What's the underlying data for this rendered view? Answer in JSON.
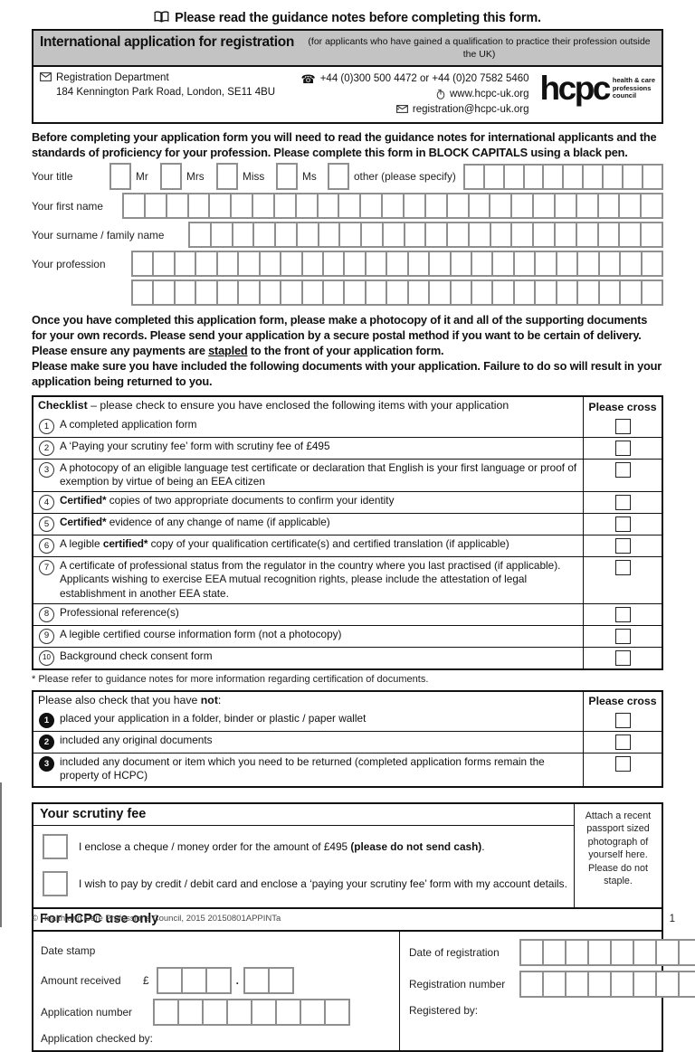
{
  "page": {
    "notice_top": "Please read the guidance notes before completing this form.",
    "footer_copyright": "© Health and Care Professions Council, 2015  20150801APPINTa",
    "page_number": "1"
  },
  "header": {
    "title": "International application for registration",
    "subtitle": "(for applicants who have gained a qualification to practice their profession outside the UK)",
    "dept": "Registration Department",
    "address": "184 Kennington Park Road, London, SE11 4BU",
    "phone": "+44 (0)300 500 4472 or +44 (0)20 7582 5460",
    "website": "www.hcpc-uk.org",
    "email": "registration@hcpc-uk.org",
    "logo": "hcpc",
    "logo_tagline": "health & care\nprofessions\ncouncil",
    "phone_glyph": "☎"
  },
  "intro": "Before completing your application form you will need to read the guidance notes for international applicants and the standards of proficiency for your profession. Please complete this form in BLOCK CAPITALS using a black pen.",
  "personal": {
    "title_label": "Your title",
    "titles": [
      "Mr",
      "Mrs",
      "Miss",
      "Ms"
    ],
    "other_label": "other (please specify)",
    "first_name": "Your first name",
    "surname": "Your surname / family name",
    "profession": "Your profession"
  },
  "notice_mid": {
    "p1": "Once you have completed this application form, please make a photocopy of it and all of the supporting documents for your own records.  Please send your application by a secure postal method if you want to be certain of delivery.",
    "p2_pre": "Please ensure any payments are ",
    "p2_underline": "stapled",
    "p2_post": " to the front of your application form.",
    "p3": "Please make sure you have included the following documents with your application. Failure to do so will result in your application being returned to you."
  },
  "checklist": {
    "title": "Checklist",
    "title_rest": " – please check to ensure you have enclosed the following items with your application",
    "cross": "Please cross",
    "items": [
      {
        "n": "1",
        "seg": [
          {
            "t": "A  completed application form"
          }
        ]
      },
      {
        "n": "2",
        "seg": [
          {
            "t": "A ‘Paying your scrutiny fee’ form with scrutiny fee of £495"
          }
        ]
      },
      {
        "n": "3",
        "seg": [
          {
            "t": "A photocopy of an eligible language test certificate or declaration that English is your first language or proof of exemption by virtue of being an EEA citizen"
          }
        ]
      },
      {
        "n": "4",
        "seg": [
          {
            "t": "Certified*",
            "b": true
          },
          {
            "t": " copies of two appropriate documents to confirm your identity"
          }
        ]
      },
      {
        "n": "5",
        "seg": [
          {
            "t": "Certified*",
            "b": true
          },
          {
            "t": " evidence of any change of name (if applicable)"
          }
        ]
      },
      {
        "n": "6",
        "seg": [
          {
            "t": "A legible "
          },
          {
            "t": "certified*",
            "b": true
          },
          {
            "t": " copy of your qualification certificate(s) and certified translation (if applicable)"
          }
        ]
      },
      {
        "n": "7",
        "seg": [
          {
            "t": "A certificate of professional status from the regulator in the country where you last practised (if applicable). Applicants wishing to exercise EEA mutual recognition rights, please include the attestation of legal establishment in another EEA state."
          }
        ]
      },
      {
        "n": "8",
        "seg": [
          {
            "t": "Professional reference(s)"
          }
        ]
      },
      {
        "n": "9",
        "seg": [
          {
            "t": "A legible certified course information form (not a photocopy)"
          }
        ]
      },
      {
        "n": "10",
        "seg": [
          {
            "t": "Background check consent form"
          }
        ]
      }
    ],
    "footnote": "* Please refer to guidance notes for more information regarding certification of documents."
  },
  "not_list": {
    "header_pre": "Please also check that you have ",
    "header_bold": "not",
    "header_post": ":",
    "cross": "Please cross",
    "items": [
      {
        "n": "1",
        "text": "placed your application in a folder, binder or plastic / paper wallet"
      },
      {
        "n": "2",
        "text": "included any original documents"
      },
      {
        "n": "3",
        "text": "included any document or item which you need to be returned (completed application forms remain the property of HCPC)"
      }
    ]
  },
  "scrutiny": {
    "title": "Your scrutiny fee",
    "opt1_pre": "I enclose a cheque / money order for the amount of £495 ",
    "opt1_bold": "(please do not send cash)",
    "opt1_post": ".",
    "opt2": "I wish to pay by credit / debit card and enclose a ‘paying your scrutiny fee’ form with my account details.",
    "photo_note": "Attach a recent passport sized photograph of yourself here. Please do not staple."
  },
  "office": {
    "title": "For HCPC use only",
    "date_stamp": "Date stamp",
    "amount": "Amount received",
    "pound": "£",
    "decimal": ".",
    "app_no": "Application number",
    "checked_by": "Application checked by:",
    "reg_date": "Date of registration",
    "reg_no": "Registration number",
    "registered_by": "Registered by:"
  }
}
